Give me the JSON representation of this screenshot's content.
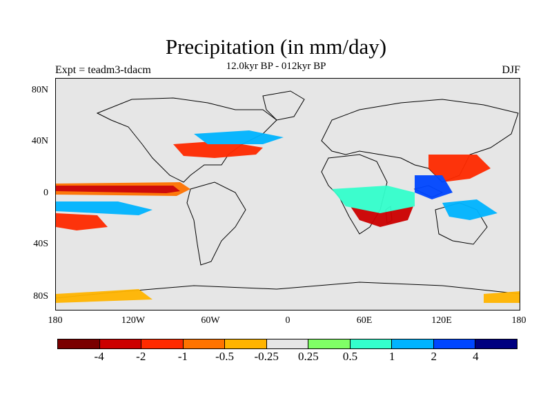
{
  "title": "Precipitation (in mm/day)",
  "subtitle": "12.0kyr BP - 012kyr BP",
  "left_label": "Expt = teadm3-tdacm",
  "right_label": "DJF",
  "y_ticks": [
    "80N",
    "40N",
    "0",
    "40S",
    "80S"
  ],
  "x_ticks": [
    "180",
    "120W",
    "60W",
    "0",
    "60E",
    "120E",
    "180"
  ],
  "colorbar": {
    "colors": [
      "#7a0000",
      "#cc0000",
      "#ff2a00",
      "#ff7300",
      "#ffb400",
      "#e6e6e6",
      "#80ff66",
      "#33ffcc",
      "#00b4ff",
      "#0046ff",
      "#000080"
    ],
    "labels": [
      "-4",
      "-2",
      "-1",
      "-0.5",
      "-0.25",
      "0.25",
      "0.5",
      "1",
      "2",
      "4"
    ]
  }
}
